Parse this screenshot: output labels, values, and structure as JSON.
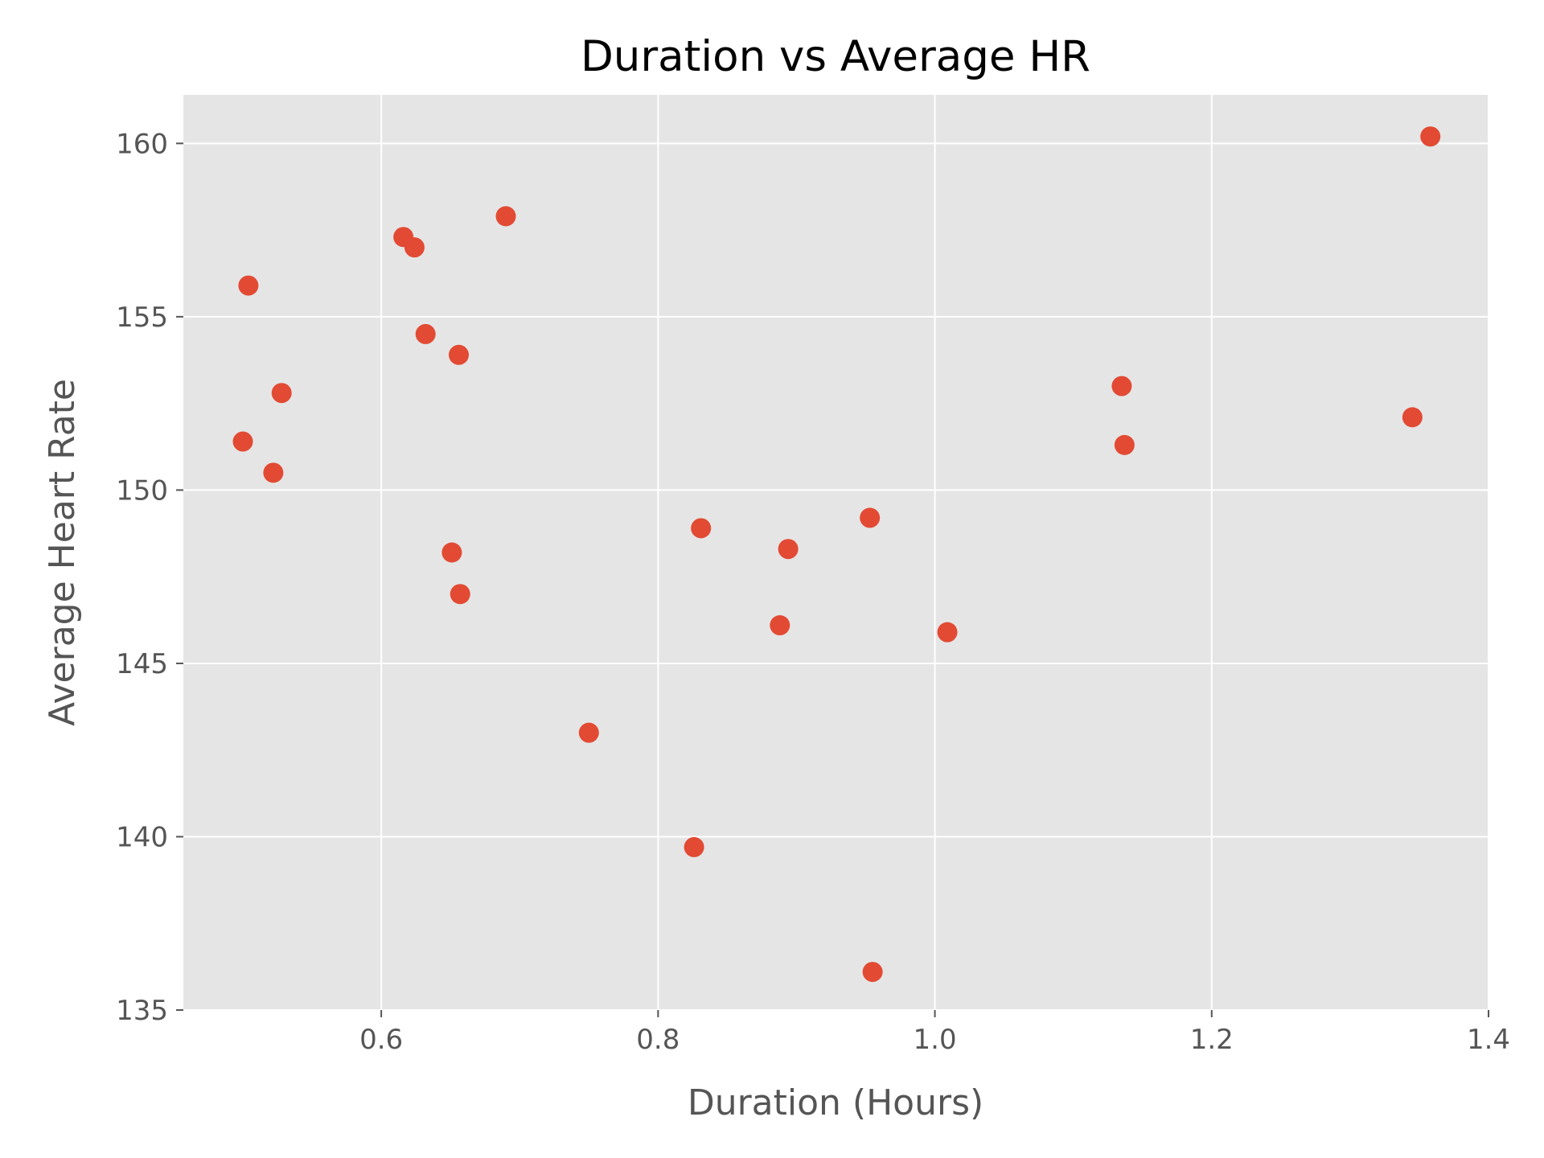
{
  "chart_data": {
    "type": "scatter",
    "title": "Duration vs Average HR",
    "xlabel": "Duration (Hours)",
    "ylabel": "Average Heart Rate",
    "xlim": [
      0.457,
      1.4
    ],
    "ylim": [
      135,
      161.4
    ],
    "xticks": [
      0.6,
      0.8,
      1.0,
      1.2,
      1.4
    ],
    "xtick_labels": [
      "0.6",
      "0.8",
      "1.0",
      "1.2",
      "1.4"
    ],
    "yticks": [
      135,
      140,
      145,
      150,
      155,
      160
    ],
    "ytick_labels": [
      "135",
      "140",
      "145",
      "150",
      "155",
      "160"
    ],
    "grid": true,
    "legend": "none",
    "colors": {
      "point": "#e24a33",
      "plot_background": "#e5e5e5",
      "grid": "#ffffff",
      "tick": "#555555"
    },
    "series": [
      {
        "points": [
          {
            "x": 0.5,
            "y": 151.4
          },
          {
            "x": 0.504,
            "y": 155.9
          },
          {
            "x": 0.522,
            "y": 150.5
          },
          {
            "x": 0.528,
            "y": 152.8
          },
          {
            "x": 0.616,
            "y": 157.3
          },
          {
            "x": 0.624,
            "y": 157.0
          },
          {
            "x": 0.632,
            "y": 154.5
          },
          {
            "x": 0.651,
            "y": 148.2
          },
          {
            "x": 0.656,
            "y": 153.9
          },
          {
            "x": 0.657,
            "y": 147.0
          },
          {
            "x": 0.69,
            "y": 157.9
          },
          {
            "x": 0.75,
            "y": 143.0
          },
          {
            "x": 0.826,
            "y": 139.7
          },
          {
            "x": 0.831,
            "y": 148.9
          },
          {
            "x": 0.888,
            "y": 146.1
          },
          {
            "x": 0.894,
            "y": 148.3
          },
          {
            "x": 0.953,
            "y": 149.2
          },
          {
            "x": 0.955,
            "y": 136.1
          },
          {
            "x": 1.009,
            "y": 145.9
          },
          {
            "x": 1.135,
            "y": 153.0
          },
          {
            "x": 1.137,
            "y": 151.3
          },
          {
            "x": 1.345,
            "y": 152.1
          },
          {
            "x": 1.358,
            "y": 160.2
          }
        ]
      }
    ]
  }
}
